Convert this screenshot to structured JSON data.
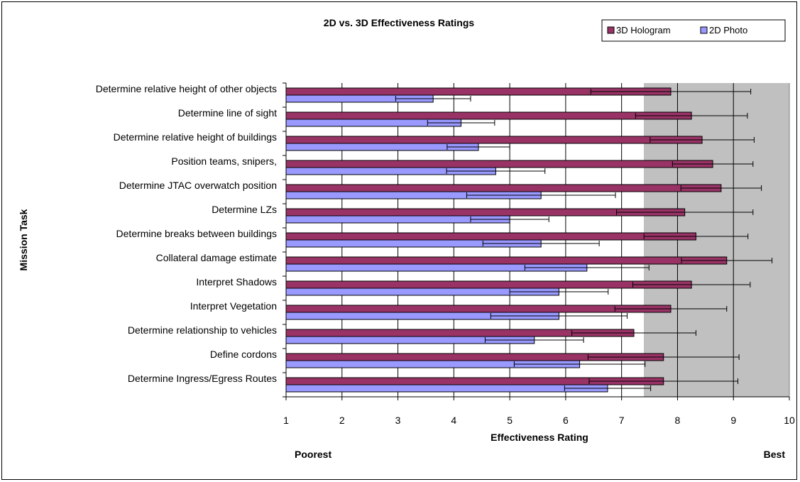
{
  "chart_data": {
    "type": "bar",
    "orientation": "horizontal",
    "title": "2D vs. 3D Effectiveness Ratings",
    "xlabel": "Effectiveness Rating",
    "ylabel": "Mission Task",
    "x_end_labels": {
      "left": "Poorest",
      "right": "Best"
    },
    "xlim": [
      1,
      10
    ],
    "xticks": [
      1,
      2,
      3,
      4,
      5,
      6,
      7,
      8,
      9,
      10
    ],
    "grid": true,
    "legend_position": "top-right",
    "categories": [
      "Determine relative height of other objects",
      "Determine line of sight",
      "Determine relative height of buildings",
      "Position teams, snipers,",
      "Determine JTAC overwatch position",
      "Determine LZs",
      "Determine breaks between buildings",
      "Collateral damage estimate",
      "Interpret Shadows",
      "Interpret Vegetation",
      "Determine relationship to vehicles",
      "Define cordons",
      "Determine Ingress/Egress Routes"
    ],
    "series": [
      {
        "name": "3D Hologram",
        "color": "#993366",
        "values": [
          7.88,
          8.25,
          8.44,
          8.63,
          8.78,
          8.13,
          8.33,
          8.88,
          8.25,
          7.88,
          7.22,
          7.75,
          7.75
        ],
        "error": [
          1.43,
          1.0,
          0.93,
          0.72,
          0.72,
          1.22,
          0.93,
          0.81,
          1.05,
          1.0,
          1.11,
          1.35,
          1.33
        ]
      },
      {
        "name": "2D Photo",
        "color": "#9999ff",
        "values": [
          3.63,
          4.13,
          4.44,
          4.75,
          5.56,
          5.0,
          5.56,
          6.38,
          5.88,
          5.88,
          5.44,
          6.25,
          6.75
        ],
        "error": [
          0.67,
          0.6,
          0.56,
          0.88,
          1.33,
          0.7,
          1.04,
          1.11,
          0.88,
          1.22,
          0.88,
          1.17,
          0.77
        ]
      }
    ]
  }
}
